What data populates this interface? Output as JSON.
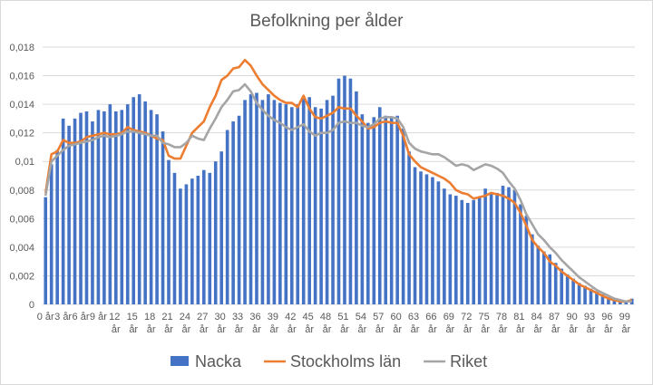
{
  "chart_data": {
    "type": "bar",
    "title": "Befolkning per ålder",
    "categories": [
      "0 år",
      null,
      null,
      "3 år",
      null,
      null,
      "6 år",
      null,
      null,
      "9 år",
      null,
      null,
      "12 år",
      null,
      null,
      "15 år",
      null,
      null,
      "18 år",
      null,
      null,
      "21 år",
      null,
      null,
      "24 år",
      null,
      null,
      "27 år",
      null,
      null,
      "30 år",
      null,
      null,
      "33 år",
      null,
      null,
      "36 år",
      null,
      null,
      "39 år",
      null,
      null,
      "42 år",
      null,
      null,
      "45 år",
      null,
      null,
      "48 år",
      null,
      null,
      "51 år",
      null,
      null,
      "54 år",
      null,
      null,
      "57 år",
      null,
      null,
      "60 år",
      null,
      null,
      "63 år",
      null,
      null,
      "66 år",
      null,
      null,
      "69 år",
      null,
      null,
      "72 år",
      null,
      null,
      "75 år",
      null,
      null,
      "78 år",
      null,
      null,
      "81 år",
      null,
      null,
      "84 år",
      null,
      null,
      "87 år",
      null,
      null,
      "90 år",
      null,
      null,
      "93 år",
      null,
      null,
      "96 år",
      null,
      null,
      "99 år",
      null
    ],
    "series": [
      {
        "name": "Nacka",
        "type": "bar",
        "color": "#4472c4",
        "values": [
          0.0075,
          0.0098,
          0.0108,
          0.013,
          0.0125,
          0.013,
          0.0134,
          0.0135,
          0.0128,
          0.0136,
          0.0135,
          0.014,
          0.0135,
          0.0136,
          0.014,
          0.0145,
          0.0147,
          0.0142,
          0.0136,
          0.0133,
          0.0121,
          0.0101,
          0.0092,
          0.0081,
          0.0084,
          0.0088,
          0.009,
          0.0094,
          0.0092,
          0.01,
          0.0107,
          0.0122,
          0.0128,
          0.0132,
          0.0143,
          0.0147,
          0.0148,
          0.0143,
          0.0147,
          0.0143,
          0.0141,
          0.014,
          0.0138,
          0.014,
          0.0145,
          0.0145,
          0.0138,
          0.0137,
          0.0143,
          0.0146,
          0.0158,
          0.016,
          0.0158,
          0.0149,
          0.0133,
          0.0127,
          0.0131,
          0.0138,
          0.0132,
          0.0131,
          0.0132,
          0.0123,
          0.0107,
          0.0096,
          0.0093,
          0.0091,
          0.0089,
          0.0086,
          0.0081,
          0.0077,
          0.0076,
          0.0073,
          0.0071,
          0.0073,
          0.0075,
          0.0081,
          0.0078,
          0.0078,
          0.0083,
          0.0082,
          0.008,
          0.007,
          0.0062,
          0.0049,
          0.0041,
          0.0037,
          0.0035,
          0.0029,
          0.0025,
          0.0021,
          0.0018,
          0.0015,
          0.0013,
          0.0011,
          0.0009,
          0.0007,
          0.0005,
          0.0004,
          0.0003,
          0.0002,
          0.0004
        ]
      },
      {
        "name": "Stockholms län",
        "type": "line",
        "color": "#ed7d31",
        "values": [
          0.0078,
          0.0105,
          0.0107,
          0.0115,
          0.0113,
          0.0113,
          0.0114,
          0.0117,
          0.0118,
          0.0119,
          0.012,
          0.0119,
          0.0119,
          0.012,
          0.0124,
          0.0122,
          0.0121,
          0.012,
          0.0118,
          0.0116,
          0.0115,
          0.0104,
          0.0102,
          0.0102,
          0.0111,
          0.012,
          0.0124,
          0.0128,
          0.0138,
          0.0146,
          0.0157,
          0.016,
          0.0165,
          0.0166,
          0.0171,
          0.0167,
          0.016,
          0.0154,
          0.015,
          0.0146,
          0.0143,
          0.0141,
          0.0141,
          0.0138,
          0.0146,
          0.0137,
          0.0131,
          0.013,
          0.0132,
          0.0134,
          0.0138,
          0.0137,
          0.0137,
          0.0132,
          0.0128,
          0.0123,
          0.0124,
          0.0127,
          0.0128,
          0.0127,
          0.0127,
          0.0118,
          0.0105,
          0.01,
          0.0096,
          0.0094,
          0.0092,
          0.009,
          0.0088,
          0.0085,
          0.008,
          0.0078,
          0.0077,
          0.0074,
          0.0075,
          0.0076,
          0.0078,
          0.0077,
          0.0076,
          0.0074,
          0.0071,
          0.0064,
          0.0055,
          0.0045,
          0.004,
          0.0036,
          0.003,
          0.0027,
          0.0023,
          0.002,
          0.0017,
          0.0014,
          0.0012,
          0.001,
          0.0008,
          0.0006,
          0.0004,
          0.0003,
          0.0002,
          0.0002,
          0.0003
        ]
      },
      {
        "name": "Riket",
        "type": "line",
        "color": "#a5a5a5",
        "values": [
          0.0076,
          0.01,
          0.0104,
          0.0108,
          0.0111,
          0.0112,
          0.0113,
          0.0114,
          0.0115,
          0.0117,
          0.0118,
          0.0117,
          0.0118,
          0.0119,
          0.0121,
          0.0121,
          0.012,
          0.0119,
          0.0118,
          0.0118,
          0.0113,
          0.0112,
          0.011,
          0.011,
          0.0113,
          0.0118,
          0.0116,
          0.0115,
          0.0123,
          0.013,
          0.0138,
          0.0143,
          0.0149,
          0.015,
          0.0154,
          0.0149,
          0.0141,
          0.0136,
          0.0132,
          0.0129,
          0.0127,
          0.0124,
          0.0122,
          0.0124,
          0.0126,
          0.0121,
          0.0118,
          0.012,
          0.012,
          0.0122,
          0.0127,
          0.0128,
          0.0127,
          0.0127,
          0.0125,
          0.0124,
          0.0126,
          0.013,
          0.0131,
          0.0131,
          0.013,
          0.0124,
          0.0113,
          0.0109,
          0.0107,
          0.0106,
          0.0105,
          0.0105,
          0.0103,
          0.01,
          0.0097,
          0.0098,
          0.0097,
          0.0094,
          0.0096,
          0.0098,
          0.0097,
          0.0095,
          0.0092,
          0.0086,
          0.0081,
          0.0073,
          0.0063,
          0.0056,
          0.0049,
          0.0045,
          0.004,
          0.0036,
          0.0031,
          0.0027,
          0.0023,
          0.0019,
          0.0016,
          0.0013,
          0.001,
          0.0008,
          0.0006,
          0.0004,
          0.0003,
          0.0002,
          0.0002
        ]
      }
    ],
    "ylim": [
      0,
      0.018
    ],
    "yticks": [
      0,
      {
        "value": 0.002,
        "label": "0,002"
      },
      {
        "value": 0.004,
        "label": "0,004"
      },
      {
        "value": 0.006,
        "label": "0,006"
      },
      {
        "value": 0.008,
        "label": "0,008"
      },
      {
        "value": 0.01,
        "label": "0,01"
      },
      {
        "value": 0.012,
        "label": "0,012"
      },
      {
        "value": 0.014,
        "label": "0,014"
      },
      {
        "value": 0.016,
        "label": "0,016"
      },
      {
        "value": 0.018,
        "label": "0,018"
      }
    ],
    "grid": true,
    "legend": "bottom"
  }
}
